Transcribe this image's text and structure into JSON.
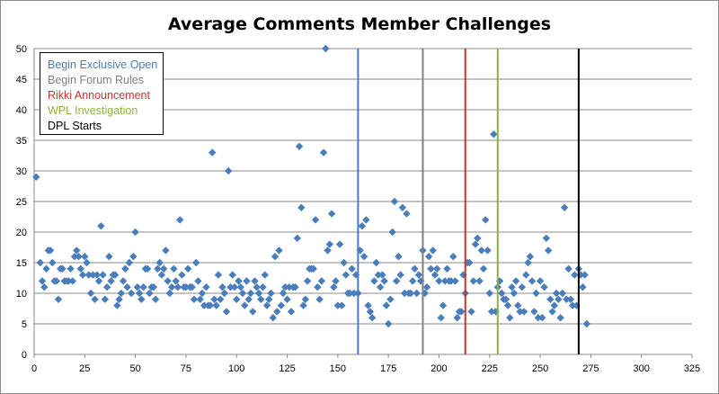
{
  "chart_data": {
    "type": "scatter",
    "title": "Average Comments Member Challenges",
    "xlabel": "",
    "ylabel": "",
    "xlim": [
      0,
      325
    ],
    "ylim": [
      0,
      50
    ],
    "x_ticks": [
      0,
      25,
      50,
      75,
      100,
      125,
      150,
      175,
      200,
      225,
      250,
      275,
      300,
      325
    ],
    "y_ticks": [
      0,
      5,
      10,
      15,
      20,
      25,
      30,
      35,
      40,
      45,
      50
    ],
    "grid": "horizontal",
    "legend_position": "top-left",
    "marker": "diamond",
    "marker_color": "#4a7ebb",
    "series": [
      {
        "values": [
          [
            1,
            29
          ],
          [
            3,
            15
          ],
          [
            4,
            12
          ],
          [
            5,
            11
          ],
          [
            6,
            14
          ],
          [
            7,
            17
          ],
          [
            8,
            17
          ],
          [
            9,
            15
          ],
          [
            10,
            12
          ],
          [
            11,
            12
          ],
          [
            12,
            9
          ],
          [
            13,
            14
          ],
          [
            14,
            14
          ],
          [
            15,
            12
          ],
          [
            16,
            12
          ],
          [
            17,
            12
          ],
          [
            18,
            14
          ],
          [
            19,
            12
          ],
          [
            20,
            16
          ],
          [
            21,
            17
          ],
          [
            22,
            16
          ],
          [
            23,
            14
          ],
          [
            24,
            13
          ],
          [
            25,
            16
          ],
          [
            26,
            15
          ],
          [
            27,
            13
          ],
          [
            28,
            10
          ],
          [
            29,
            13
          ],
          [
            30,
            9
          ],
          [
            31,
            13
          ],
          [
            32,
            12
          ],
          [
            33,
            21
          ],
          [
            34,
            13
          ],
          [
            35,
            9
          ],
          [
            36,
            11
          ],
          [
            37,
            16
          ],
          [
            38,
            12
          ],
          [
            39,
            13
          ],
          [
            40,
            13
          ],
          [
            41,
            8
          ],
          [
            42,
            9
          ],
          [
            43,
            10
          ],
          [
            44,
            12
          ],
          [
            45,
            14
          ],
          [
            46,
            11
          ],
          [
            47,
            15
          ],
          [
            48,
            10
          ],
          [
            49,
            16
          ],
          [
            50,
            20
          ],
          [
            51,
            11
          ],
          [
            52,
            10
          ],
          [
            53,
            9
          ],
          [
            54,
            11
          ],
          [
            55,
            14
          ],
          [
            56,
            14
          ],
          [
            57,
            10
          ],
          [
            58,
            11
          ],
          [
            59,
            11
          ],
          [
            60,
            9
          ],
          [
            61,
            14
          ],
          [
            62,
            15
          ],
          [
            63,
            13
          ],
          [
            64,
            14
          ],
          [
            65,
            17
          ],
          [
            66,
            12
          ],
          [
            67,
            10
          ],
          [
            68,
            11
          ],
          [
            69,
            14
          ],
          [
            70,
            12
          ],
          [
            71,
            11
          ],
          [
            72,
            22
          ],
          [
            73,
            13
          ],
          [
            74,
            11
          ],
          [
            75,
            11
          ],
          [
            76,
            14
          ],
          [
            77,
            11
          ],
          [
            78,
            11
          ],
          [
            79,
            9
          ],
          [
            80,
            15
          ],
          [
            81,
            12
          ],
          [
            82,
            9
          ],
          [
            83,
            10
          ],
          [
            84,
            8
          ],
          [
            85,
            11
          ],
          [
            86,
            8
          ],
          [
            87,
            8
          ],
          [
            88,
            33
          ],
          [
            89,
            9
          ],
          [
            90,
            8
          ],
          [
            91,
            13
          ],
          [
            92,
            9
          ],
          [
            93,
            11
          ],
          [
            94,
            10
          ],
          [
            95,
            7
          ],
          [
            96,
            30
          ],
          [
            97,
            11
          ],
          [
            98,
            13
          ],
          [
            99,
            11
          ],
          [
            100,
            9
          ],
          [
            101,
            12
          ],
          [
            102,
            11
          ],
          [
            103,
            10
          ],
          [
            104,
            8
          ],
          [
            105,
            12
          ],
          [
            106,
            9
          ],
          [
            107,
            10
          ],
          [
            108,
            7
          ],
          [
            109,
            12
          ],
          [
            110,
            11
          ],
          [
            111,
            10
          ],
          [
            112,
            9
          ],
          [
            113,
            11
          ],
          [
            114,
            13
          ],
          [
            115,
            8
          ],
          [
            116,
            9
          ],
          [
            117,
            10
          ],
          [
            118,
            6
          ],
          [
            119,
            16
          ],
          [
            120,
            7
          ],
          [
            121,
            17
          ],
          [
            122,
            8
          ],
          [
            123,
            10
          ],
          [
            124,
            11
          ],
          [
            125,
            9
          ],
          [
            126,
            11
          ],
          [
            127,
            7
          ],
          [
            128,
            11
          ],
          [
            129,
            11
          ],
          [
            130,
            19
          ],
          [
            131,
            34
          ],
          [
            132,
            24
          ],
          [
            133,
            8
          ],
          [
            134,
            9
          ],
          [
            135,
            12
          ],
          [
            136,
            14
          ],
          [
            137,
            14
          ],
          [
            138,
            14
          ],
          [
            139,
            22
          ],
          [
            140,
            11
          ],
          [
            141,
            9
          ],
          [
            142,
            12
          ],
          [
            143,
            33
          ],
          [
            144,
            50
          ],
          [
            145,
            17
          ],
          [
            146,
            18
          ],
          [
            147,
            23
          ],
          [
            148,
            11
          ],
          [
            149,
            12
          ],
          [
            150,
            8
          ],
          [
            151,
            18
          ],
          [
            152,
            8
          ],
          [
            153,
            15
          ],
          [
            154,
            13
          ],
          [
            155,
            10
          ],
          [
            156,
            10
          ],
          [
            157,
            14
          ],
          [
            158,
            10
          ],
          [
            159,
            13
          ],
          [
            160,
            10
          ],
          [
            161,
            17
          ],
          [
            162,
            21
          ],
          [
            163,
            16
          ],
          [
            164,
            22
          ],
          [
            165,
            8
          ],
          [
            166,
            7
          ],
          [
            167,
            6
          ],
          [
            168,
            12
          ],
          [
            169,
            15
          ],
          [
            170,
            13
          ],
          [
            171,
            11
          ],
          [
            172,
            13
          ],
          [
            173,
            12
          ],
          [
            174,
            8
          ],
          [
            175,
            5
          ],
          [
            176,
            9
          ],
          [
            177,
            20
          ],
          [
            178,
            25
          ],
          [
            179,
            12
          ],
          [
            180,
            16
          ],
          [
            181,
            13
          ],
          [
            182,
            24
          ],
          [
            183,
            10
          ],
          [
            184,
            23
          ],
          [
            185,
            10
          ],
          [
            186,
            10
          ],
          [
            187,
            12
          ],
          [
            188,
            14
          ],
          [
            189,
            10
          ],
          [
            190,
            13
          ],
          [
            191,
            12
          ],
          [
            192,
            17
          ],
          [
            193,
            10
          ],
          [
            194,
            11
          ],
          [
            195,
            16
          ],
          [
            196,
            14
          ],
          [
            197,
            17
          ],
          [
            198,
            13
          ],
          [
            199,
            14
          ],
          [
            200,
            12
          ],
          [
            201,
            6
          ],
          [
            202,
            8
          ],
          [
            203,
            12
          ],
          [
            204,
            14
          ],
          [
            205,
            12
          ],
          [
            206,
            12
          ],
          [
            207,
            16
          ],
          [
            208,
            12
          ],
          [
            209,
            6
          ],
          [
            210,
            7
          ],
          [
            211,
            7
          ],
          [
            212,
            13
          ],
          [
            213,
            10
          ],
          [
            214,
            15
          ],
          [
            215,
            15
          ],
          [
            216,
            7
          ],
          [
            217,
            12
          ],
          [
            218,
            18
          ],
          [
            219,
            19
          ],
          [
            220,
            12
          ],
          [
            221,
            17
          ],
          [
            222,
            14
          ],
          [
            223,
            22
          ],
          [
            224,
            17
          ],
          [
            225,
            10
          ],
          [
            226,
            7
          ],
          [
            227,
            36
          ],
          [
            228,
            7
          ],
          [
            229,
            11
          ],
          [
            230,
            12
          ],
          [
            231,
            10
          ],
          [
            232,
            9
          ],
          [
            233,
            9
          ],
          [
            234,
            8
          ],
          [
            235,
            6
          ],
          [
            236,
            11
          ],
          [
            237,
            10
          ],
          [
            238,
            12
          ],
          [
            239,
            8
          ],
          [
            240,
            7
          ],
          [
            241,
            11
          ],
          [
            242,
            7
          ],
          [
            243,
            13
          ],
          [
            244,
            15
          ],
          [
            245,
            16
          ],
          [
            246,
            12
          ],
          [
            247,
            7
          ],
          [
            248,
            10
          ],
          [
            249,
            6
          ],
          [
            250,
            12
          ],
          [
            251,
            6
          ],
          [
            252,
            11
          ],
          [
            253,
            19
          ],
          [
            254,
            17
          ],
          [
            255,
            9
          ],
          [
            256,
            7
          ],
          [
            257,
            8
          ],
          [
            258,
            10
          ],
          [
            259,
            9
          ],
          [
            260,
            6
          ],
          [
            261,
            10
          ],
          [
            262,
            24
          ],
          [
            263,
            9
          ],
          [
            264,
            14
          ],
          [
            265,
            9
          ],
          [
            266,
            8
          ],
          [
            267,
            13
          ],
          [
            268,
            8
          ],
          [
            269,
            14
          ],
          [
            270,
            13
          ],
          [
            271,
            11
          ],
          [
            272,
            13
          ],
          [
            273,
            5
          ]
        ]
      }
    ],
    "vertical_lines": [
      {
        "name": "Begin Exclusive Open",
        "x": 160,
        "color": "#4a7ebb"
      },
      {
        "name": "Begin Forum Rules",
        "x": 192,
        "color": "#7f7f7f"
      },
      {
        "name": "Rikki Announcement",
        "x": 213,
        "color": "#c0392b"
      },
      {
        "name": "WPL Investigation",
        "x": 229,
        "color": "#8db33a"
      },
      {
        "name": "DPL Starts",
        "x": 269,
        "color": "#000000"
      }
    ]
  }
}
